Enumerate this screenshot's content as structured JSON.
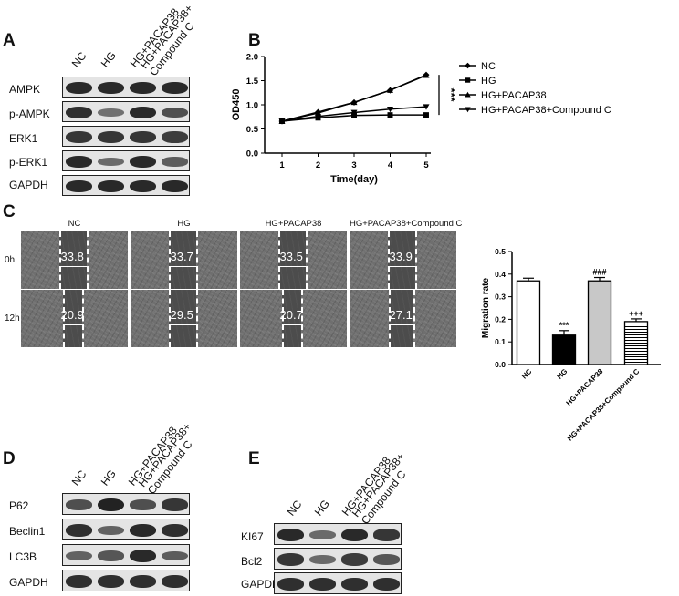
{
  "panels": {
    "a": "A",
    "b": "B",
    "c": "C",
    "d": "D",
    "e": "E"
  },
  "panel_a": {
    "columns": [
      "NC",
      "HG",
      "HG+PACAP38",
      "HG+PACAP38+\nCompound C"
    ],
    "rows": [
      "AMPK",
      "p-AMPK",
      "ERK1",
      "p-ERK1",
      "GAPDH"
    ]
  },
  "panel_d": {
    "columns": [
      "NC",
      "HG",
      "HG+PACAP38",
      "HG+PACAP38+\nCompound C"
    ],
    "rows": [
      "P62",
      "Beclin1",
      "LC3B",
      "GAPDH"
    ]
  },
  "panel_e": {
    "columns": [
      "NC",
      "HG",
      "HG+PACAP38",
      "HG+PACAP38+\nCompound C"
    ],
    "rows": [
      "KI67",
      "Bcl2",
      "GAPDH"
    ]
  },
  "panel_c_images": {
    "columns": [
      "NC",
      "HG",
      "HG+PACAP38",
      "HG+PACAP38+Compound C"
    ],
    "rows": [
      "0h",
      "12h"
    ],
    "measurements": [
      [
        "33.8",
        "33.7",
        "33.5",
        "33.9"
      ],
      [
        "20.9",
        "29.5",
        "20.7",
        "27.1"
      ]
    ]
  },
  "chart_data": [
    {
      "type": "line",
      "xlabel": "Time(day)",
      "ylabel": "OD450",
      "x": [
        1,
        2,
        3,
        4,
        5
      ],
      "xticks": [
        "1",
        "2",
        "3",
        "4",
        "5"
      ],
      "yticks": [
        "0.0",
        "0.5",
        "1.0",
        "1.5",
        "2.0"
      ],
      "ylim": [
        0,
        2.0
      ],
      "series": [
        {
          "name": "NC",
          "marker": "diamond",
          "values": [
            0.66,
            0.85,
            1.05,
            1.3,
            1.62
          ]
        },
        {
          "name": "HG",
          "marker": "square",
          "values": [
            0.66,
            0.73,
            0.78,
            0.79,
            0.79
          ]
        },
        {
          "name": "HG+PACAP38",
          "marker": "triangle-up",
          "values": [
            0.66,
            0.83,
            1.05,
            1.3,
            1.61
          ]
        },
        {
          "name": "HG+PACAP38+Compound C",
          "marker": "triangle-down",
          "values": [
            0.66,
            0.76,
            0.84,
            0.91,
            0.96
          ]
        }
      ],
      "annotation": "***",
      "legend_position": "right"
    },
    {
      "type": "bar",
      "ylabel": "Migration rate",
      "categories": [
        "NC",
        "HG",
        "HG+PACAP38",
        "HG+PACAP38+Compound C"
      ],
      "values": [
        0.37,
        0.13,
        0.37,
        0.19
      ],
      "errors": [
        0.012,
        0.02,
        0.015,
        0.012
      ],
      "significance": [
        "",
        "***",
        "###",
        "+++"
      ],
      "yticks": [
        "0.0",
        "0.1",
        "0.2",
        "0.3",
        "0.4",
        "0.5"
      ],
      "ylim": [
        0,
        0.5
      ]
    }
  ]
}
